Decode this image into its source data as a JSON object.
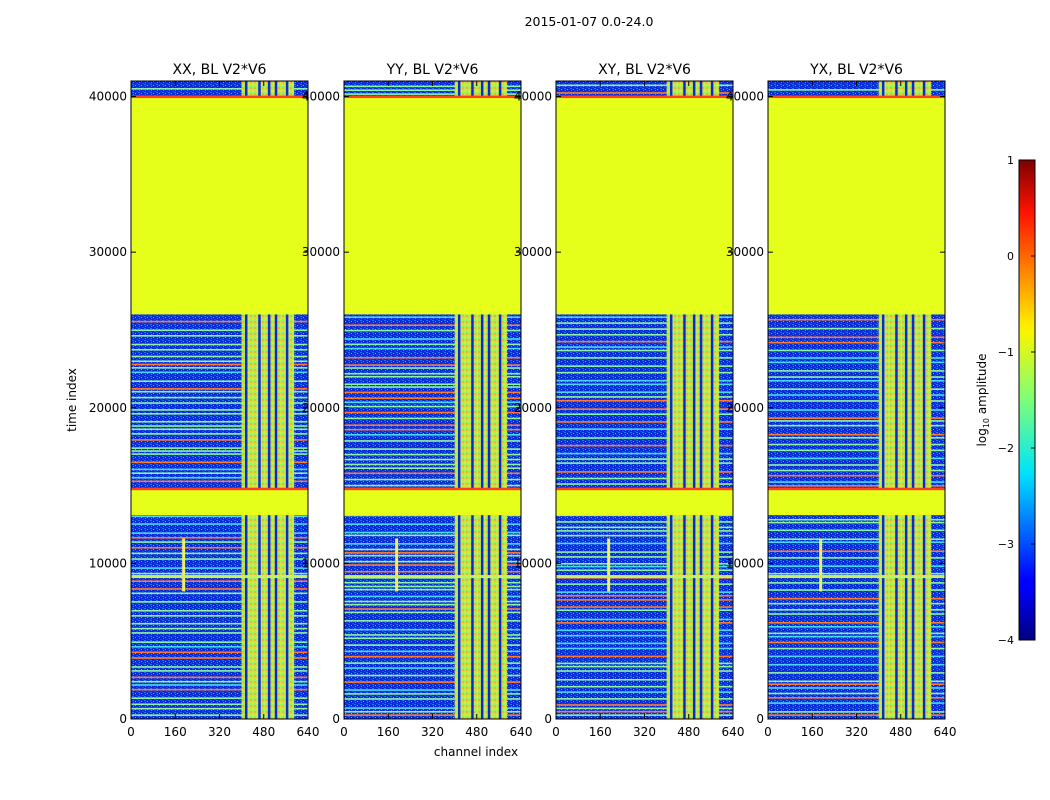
{
  "suptitle": "2015-01-07 0.0-24.0",
  "chart_data": {
    "type": "heatmap",
    "xlabel": "channel index",
    "ylabel": "time index",
    "xlim": [
      0,
      640
    ],
    "ylim": [
      0,
      41000
    ],
    "xticks": [
      0,
      160,
      320,
      480,
      640
    ],
    "yticks": [
      0,
      10000,
      20000,
      30000,
      40000
    ],
    "panels": [
      {
        "title": "XX, BL V2*V6",
        "bright_channels": [
          400,
          590
        ]
      },
      {
        "title": "YY, BL V2*V6",
        "bright_channels": [
          400,
          590
        ]
      },
      {
        "title": "XY, BL V2*V6",
        "bright_channels": [
          400,
          590
        ]
      },
      {
        "title": "YX, BL V2*V6",
        "bright_channels": [
          400,
          590
        ]
      }
    ],
    "flagged_time_ranges": [
      [
        26000,
        40000
      ],
      [
        13100,
        14800
      ]
    ],
    "flagged_value_log10": -1,
    "colorbar": {
      "label": "log10 amplitude",
      "label_base": "log",
      "label_sub": "10",
      "label_rest": " amplitude",
      "range": [
        -4,
        1
      ],
      "ticks": [
        1,
        0,
        -1,
        -2,
        -3,
        -4
      ],
      "colormap": "jet"
    }
  }
}
